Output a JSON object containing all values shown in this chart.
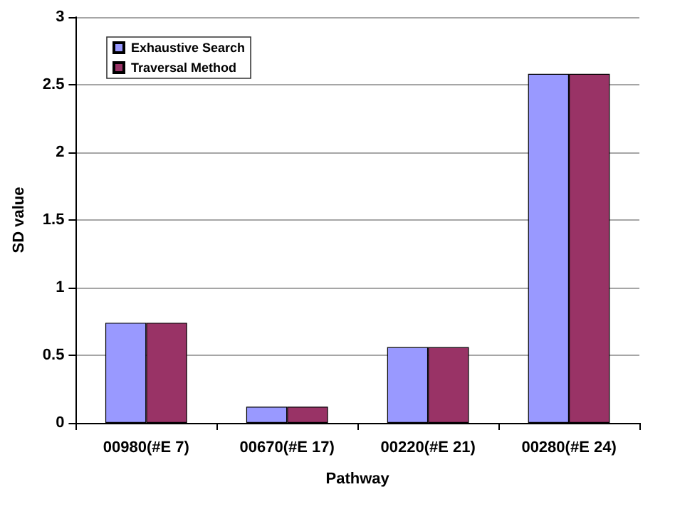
{
  "chart_data": {
    "type": "bar",
    "xlabel": "Pathway",
    "ylabel": "SD value",
    "categories": [
      "00980(#E 7)",
      "00670(#E 17)",
      "00220(#E 21)",
      "00280(#E 24)"
    ],
    "series": [
      {
        "name": "Exhaustive Search",
        "color": "#9999ff",
        "values": [
          0.74,
          0.12,
          0.56,
          2.58
        ]
      },
      {
        "name": "Traversal Method",
        "color": "#993366",
        "values": [
          0.74,
          0.12,
          0.56,
          2.58
        ]
      }
    ],
    "ylim": [
      0,
      3
    ],
    "yticks": [
      0,
      0.5,
      1,
      1.5,
      2,
      2.5,
      3
    ],
    "grid": "y",
    "legend": "top left"
  }
}
